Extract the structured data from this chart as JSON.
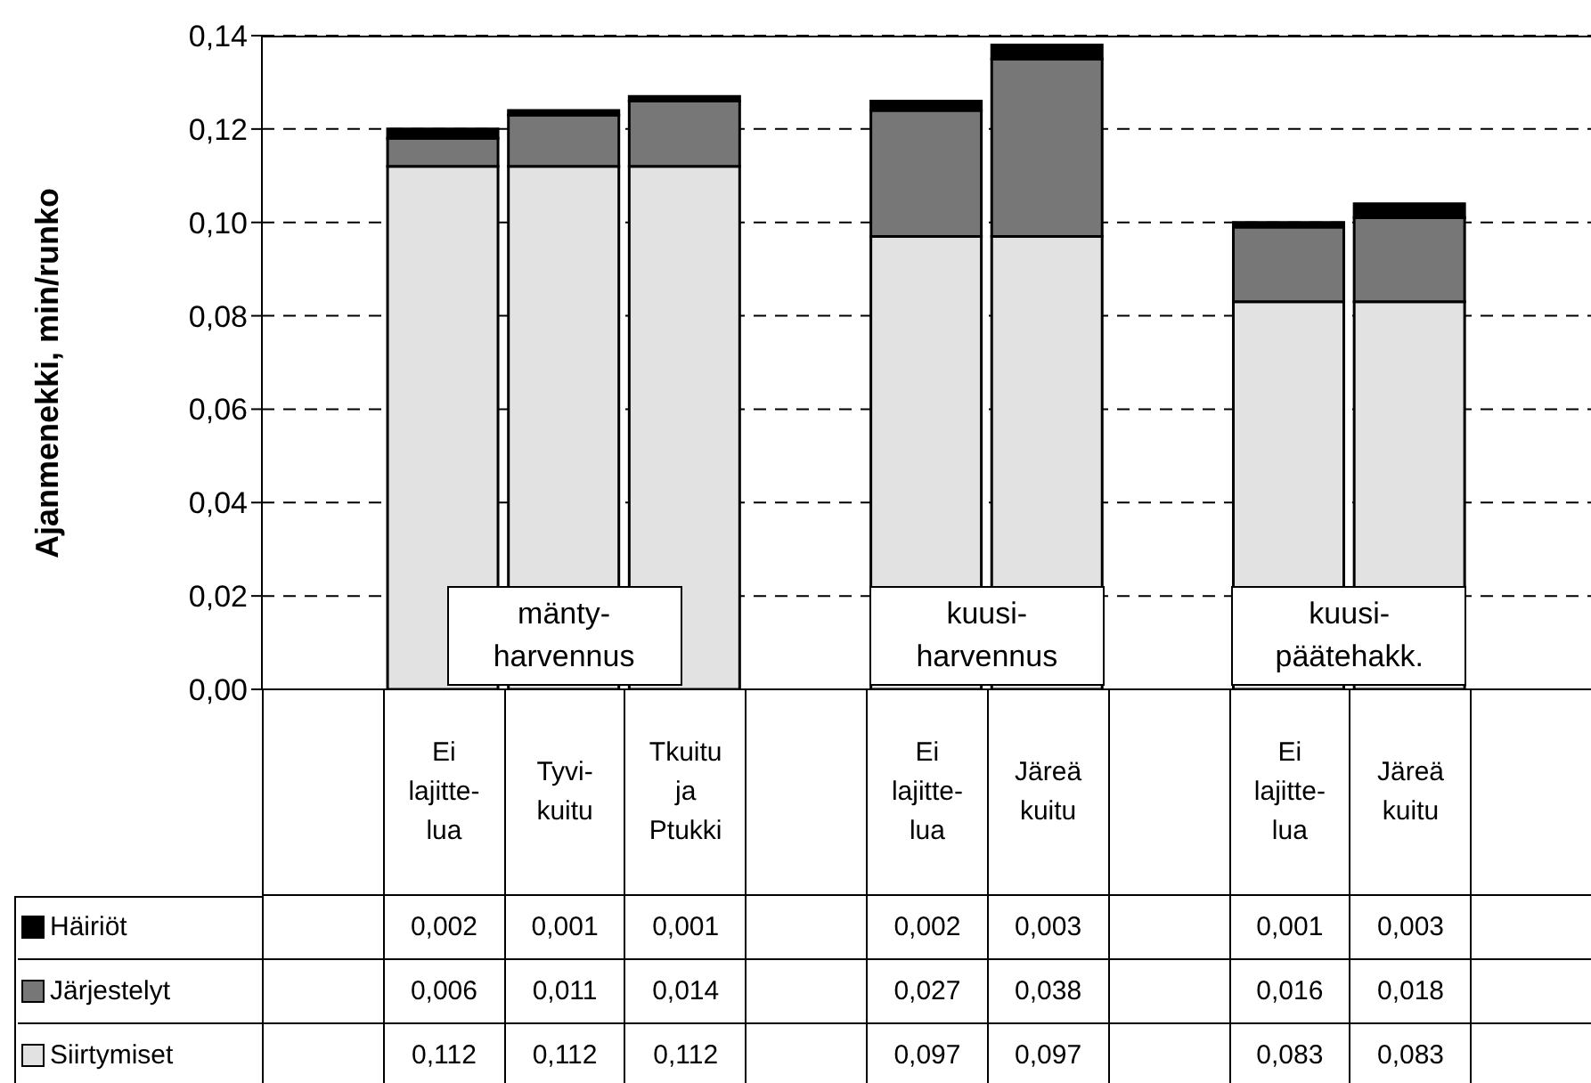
{
  "chart_data": {
    "type": "bar",
    "stacked": true,
    "ylabel": "Ajanmenekki, min/runko",
    "categories": [
      null,
      "Ei\nlajitte-\nlua",
      "Tyvi-\nkuitu",
      "Tkuitu\nja\nPtukki",
      null,
      "Ei\nlajitte-\nlua",
      "Järeä\nkuitu",
      null,
      "Ei\nlajitte-\nlua",
      "Järeä\nkuitu",
      null
    ],
    "series": [
      {
        "name": "Siirtymiset",
        "color": "#e2e2e2",
        "values": [
          null,
          0.112,
          0.112,
          0.112,
          null,
          0.097,
          0.097,
          null,
          0.083,
          0.083,
          null
        ],
        "value_labels": [
          null,
          "0,112",
          "0,112",
          "0,112",
          null,
          "0,097",
          "0,097",
          null,
          "0,083",
          "0,083",
          null
        ]
      },
      {
        "name": "Järjestelyt",
        "color": "#777777",
        "values": [
          null,
          0.006,
          0.011,
          0.014,
          null,
          0.027,
          0.038,
          null,
          0.016,
          0.018,
          null
        ],
        "value_labels": [
          null,
          "0,006",
          "0,011",
          "0,014",
          null,
          "0,027",
          "0,038",
          null,
          "0,016",
          "0,018",
          null
        ]
      },
      {
        "name": "Häiriöt",
        "color": "#000000",
        "values": [
          null,
          0.002,
          0.001,
          0.001,
          null,
          0.002,
          0.003,
          null,
          0.001,
          0.003,
          null
        ],
        "value_labels": [
          null,
          "0,002",
          "0,001",
          "0,001",
          null,
          "0,002",
          "0,003",
          null,
          "0,001",
          "0,003",
          null
        ]
      }
    ],
    "ylim": [
      0,
      0.14
    ],
    "yticks": [
      {
        "value": 0,
        "label": "0,00"
      },
      {
        "value": 0.02,
        "label": "0,02"
      },
      {
        "value": 0.04,
        "label": "0,04"
      },
      {
        "value": 0.06,
        "label": "0,06"
      },
      {
        "value": 0.08,
        "label": "0,08"
      },
      {
        "value": 0.1,
        "label": "0,10"
      },
      {
        "value": 0.12,
        "label": "0,12"
      },
      {
        "value": 0.14,
        "label": "0,14"
      }
    ],
    "grid": "y",
    "legend": "bottom left",
    "annotations": [
      "mänty-\nharvennus",
      "kuusi-\nharvennus",
      "kuusi-\npäätehakk."
    ]
  }
}
